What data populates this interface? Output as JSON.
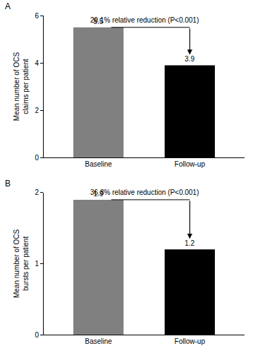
{
  "chart_data": [
    {
      "type": "bar",
      "title": "A",
      "y_label": "Mean number of OCS claims per patient",
      "categories": [
        "Baseline",
        "Follow-up"
      ],
      "values": [
        5.5,
        3.9
      ],
      "colors": [
        "#808080",
        "#000000"
      ],
      "ylim": [
        0,
        6
      ],
      "yticks": [
        0,
        2,
        4,
        6
      ],
      "data_labels": true,
      "grid": false,
      "annotations": [
        "29.1% relative reduction (P<0.001)"
      ]
    },
    {
      "type": "bar",
      "title": "B",
      "y_label": "Mean number of OCS bursts per patient",
      "categories": [
        "Baseline",
        "Follow-up"
      ],
      "values": [
        1.9,
        1.2
      ],
      "colors": [
        "#808080",
        "#000000"
      ],
      "ylim": [
        0,
        2
      ],
      "yticks": [
        0,
        1,
        2
      ],
      "data_labels": true,
      "grid": false,
      "annotations": [
        "36.8% relative reduction (P<0.001)"
      ]
    }
  ]
}
